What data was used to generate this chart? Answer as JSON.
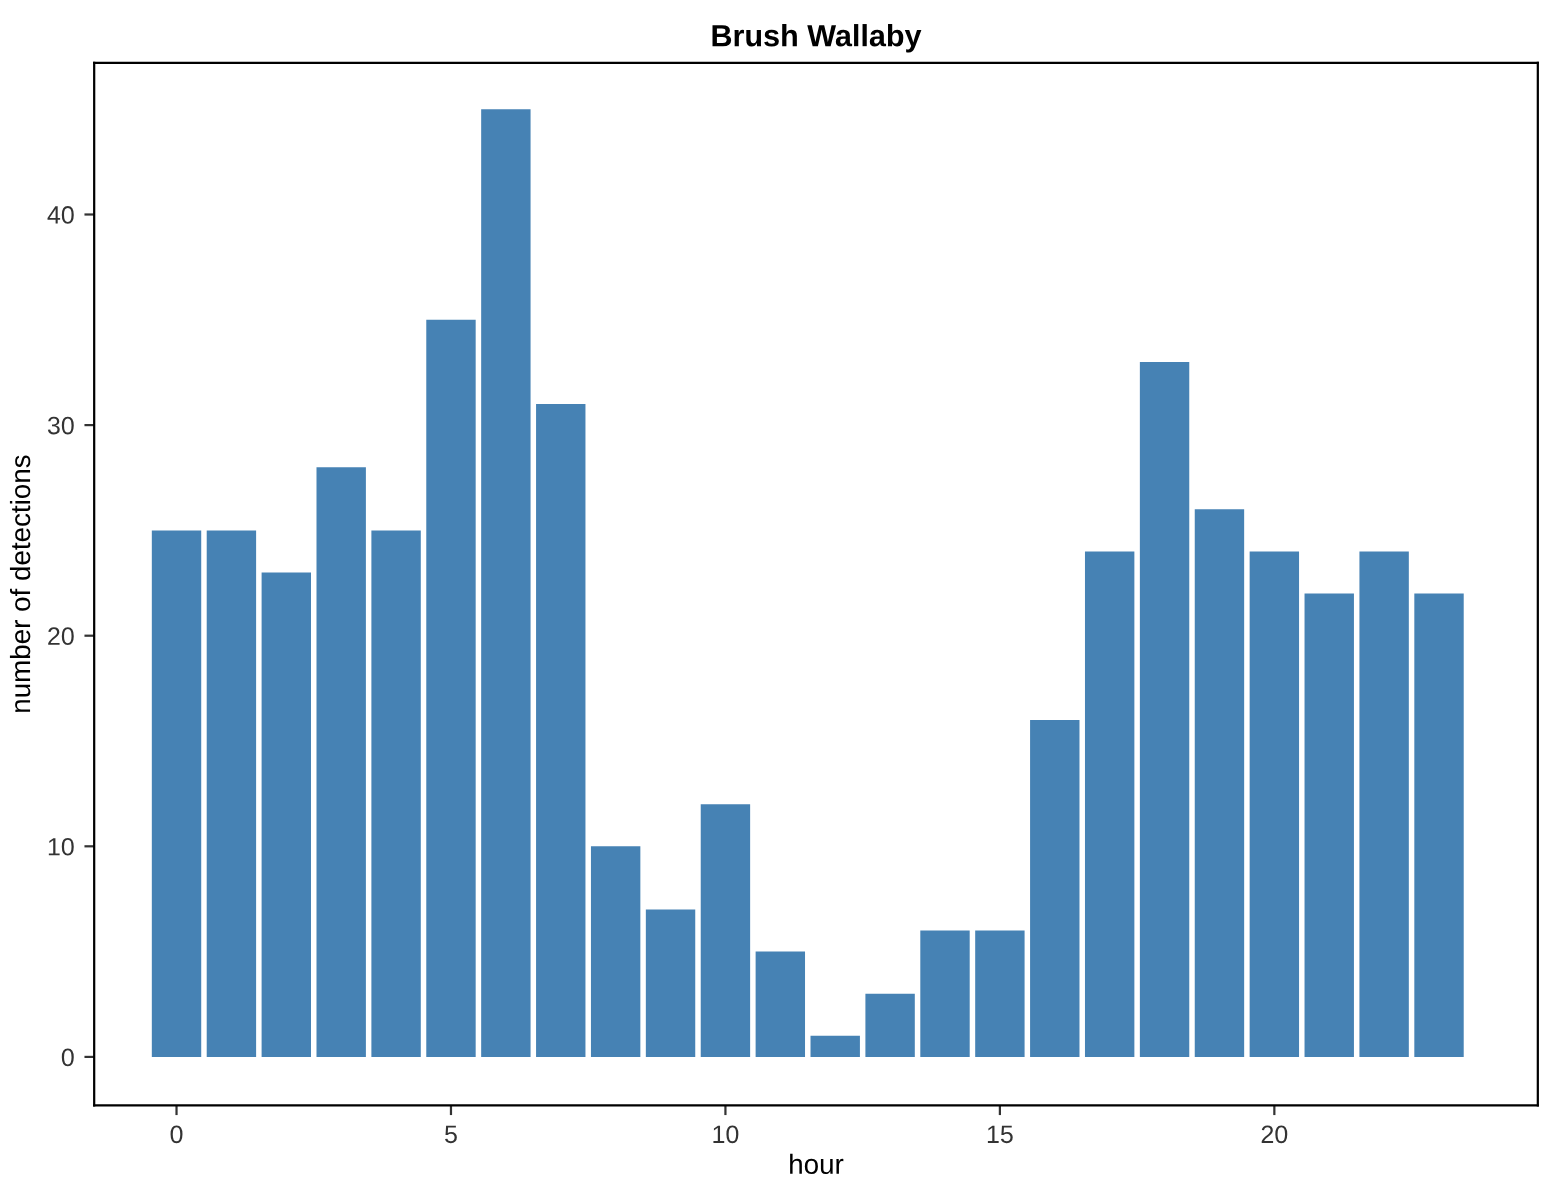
{
  "chart_data": {
    "type": "bar",
    "title": "Brush Wallaby",
    "xlabel": "hour",
    "ylabel": "number of detections",
    "x": [
      0,
      1,
      2,
      3,
      4,
      5,
      6,
      7,
      8,
      9,
      10,
      11,
      12,
      13,
      14,
      15,
      16,
      17,
      18,
      19,
      20,
      21,
      22,
      23
    ],
    "values": [
      25,
      25,
      23,
      28,
      25,
      35,
      45,
      31,
      10,
      7,
      12,
      5,
      1,
      3,
      6,
      6,
      16,
      24,
      33,
      26,
      24,
      22,
      24,
      22
    ],
    "color": "#4682b4",
    "xlim": [
      -1.5,
      24.8
    ],
    "xticks": [
      0,
      5,
      10,
      15,
      20
    ],
    "ylim": [
      -2.3,
      47.2
    ],
    "yticks": [
      0,
      10,
      20,
      30,
      40
    ],
    "grid": false,
    "legend": false
  }
}
